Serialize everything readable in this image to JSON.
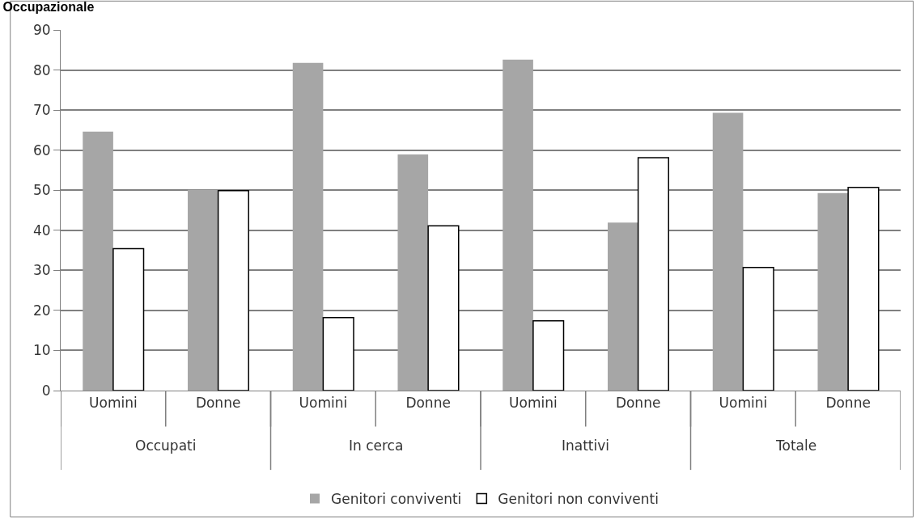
{
  "chart_data": {
    "type": "bar",
    "title": "Occupazionale",
    "categories": [
      "Uomini",
      "Donne",
      "Uomini",
      "Donne",
      "Uomini",
      "Donne",
      "Uomini",
      "Donne"
    ],
    "annotations": [
      "Occupati",
      "In cerca",
      "Inattivi",
      "Totale"
    ],
    "series": [
      {
        "name": "Genitori conviventi",
        "color": "#a6a6a6",
        "values": [
          64.6,
          50.1,
          81.8,
          58.9,
          82.6,
          41.9,
          69.3,
          49.3
        ]
      },
      {
        "name": "Genitori non conviventi",
        "color": "#ffffff",
        "values": [
          35.4,
          49.9,
          18.2,
          41.1,
          17.4,
          58.1,
          30.7,
          50.7
        ]
      }
    ],
    "ylim": [
      0,
      90
    ],
    "yticks": [
      0,
      10,
      20,
      30,
      40,
      50,
      60,
      70,
      80,
      90
    ],
    "grid": "y",
    "legend": "bottom"
  }
}
